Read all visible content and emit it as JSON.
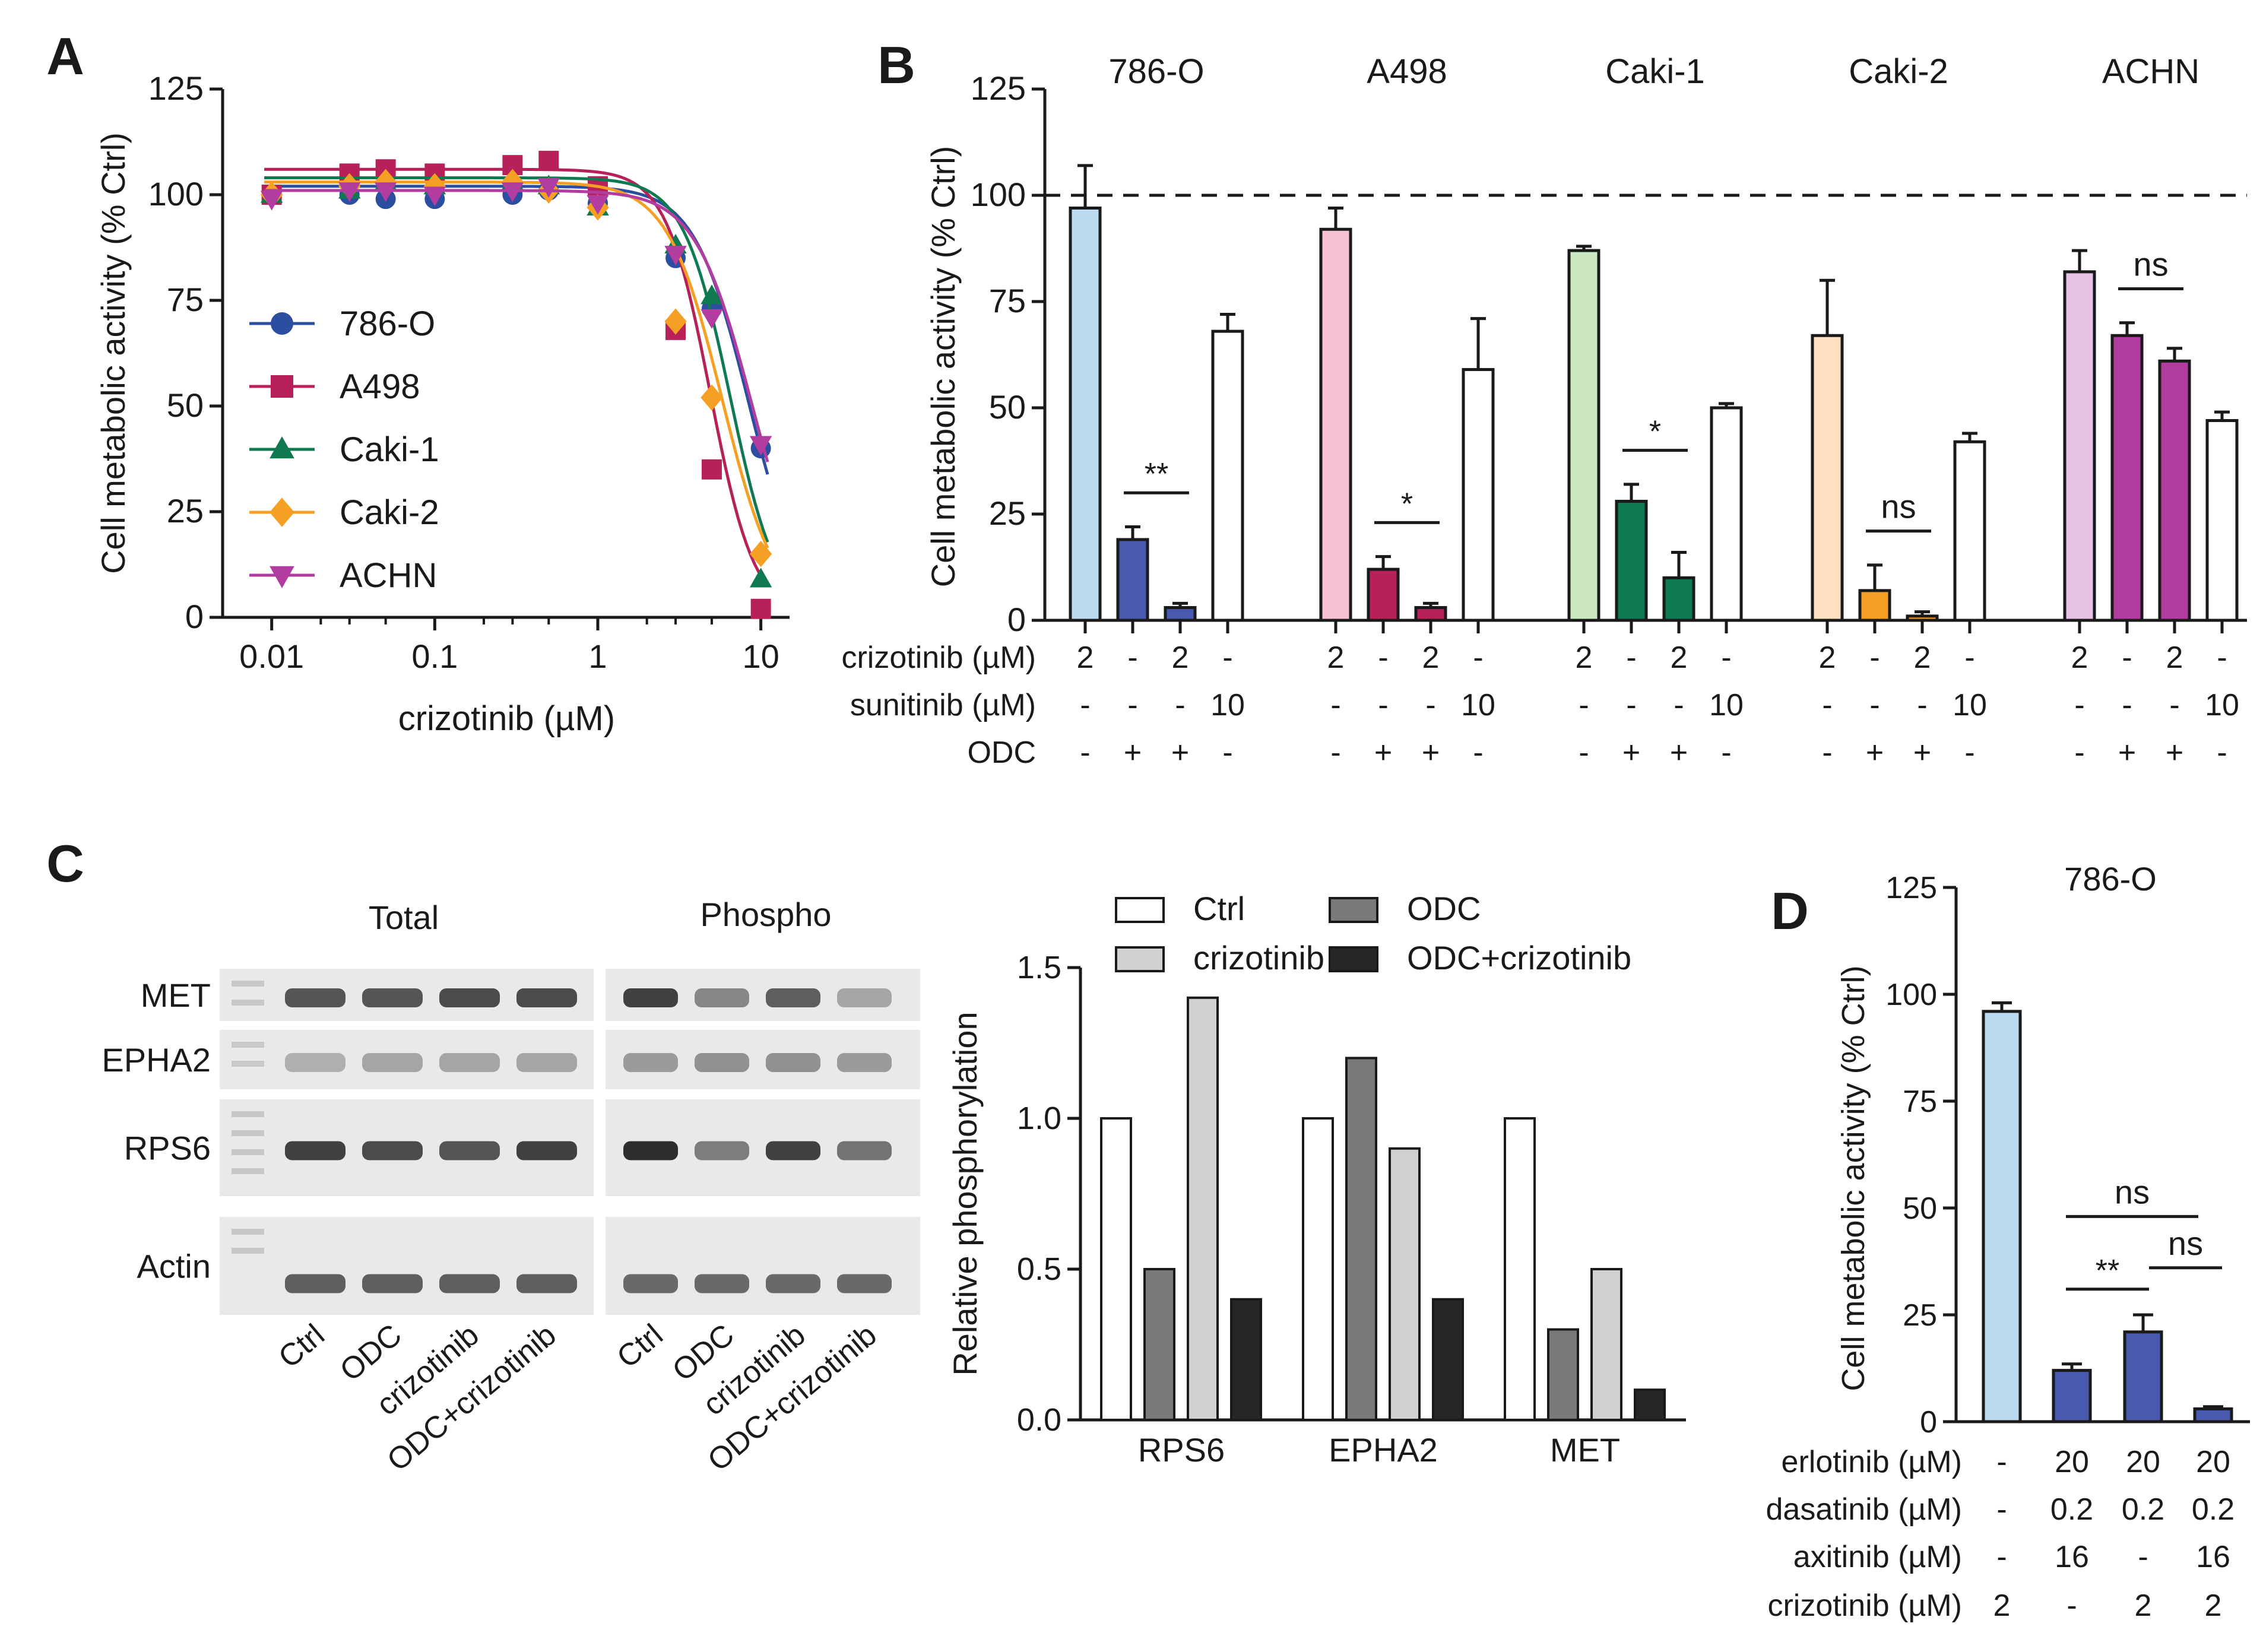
{
  "colors": {
    "786-O": "#2b4ea0",
    "A498": "#b8205a",
    "Caki-1": "#0f7a50",
    "Caki-2": "#f5a024",
    "ACHN": "#b23ca0",
    "786-O-light": "#bcdaf0",
    "A498-light": "#f7c2d3",
    "Caki-1-light": "#cce8c2",
    "Caki-2-light": "#fde0c0",
    "ACHN-light": "#e8c2e2",
    "bar-blue": "#4a59b0",
    "axis": "#1a1a1a"
  },
  "chart_data": [
    {
      "panel": "A",
      "type": "line",
      "xscale": "log",
      "xlabel": "crizotinib (µM)",
      "ylabel": "Cell metabolic activity (% Ctrl)",
      "ylim": [
        0,
        125
      ],
      "yticks": [
        "0",
        "25",
        "50",
        "75",
        "100",
        "125"
      ],
      "xticks": [
        "0.01",
        "0.1",
        "1",
        "10"
      ],
      "x": [
        0.01,
        0.03,
        0.05,
        0.1,
        0.3,
        0.5,
        1,
        3,
        5,
        10
      ],
      "series": [
        {
          "name": "786-O",
          "marker": "circle",
          "values": [
            100,
            100,
            99,
            99,
            100,
            101,
            98,
            85,
            73,
            40
          ],
          "curve": {
            "top": 102,
            "ic50": 8.4,
            "hill": 2.6
          }
        },
        {
          "name": "A498",
          "marker": "square",
          "values": [
            100,
            105,
            106,
            105,
            107,
            108,
            102,
            68,
            35,
            2
          ],
          "curve": {
            "top": 106,
            "ic50": 4.9,
            "hill": 3.2
          }
        },
        {
          "name": "Caki-1",
          "marker": "triangle-up",
          "values": [
            100,
            101,
            103,
            102,
            103,
            102,
            97,
            88,
            76,
            9
          ],
          "curve": {
            "top": 104,
            "ic50": 6.5,
            "hill": 3.0
          }
        },
        {
          "name": "Caki-2",
          "marker": "diamond",
          "values": [
            100,
            102,
            103,
            102,
            103,
            101,
            97,
            70,
            52,
            15
          ],
          "curve": {
            "top": 103,
            "ic50": 5.8,
            "hill": 2.6
          }
        },
        {
          "name": "ACHN",
          "marker": "triangle-down",
          "values": [
            99,
            101,
            101,
            100,
            101,
            102,
            98,
            86,
            71,
            41
          ],
          "curve": {
            "top": 101,
            "ic50": 8.8,
            "hill": 2.5
          }
        }
      ]
    },
    {
      "panel": "B",
      "type": "bar",
      "ylabel": "Cell metabolic activity (% Ctrl)",
      "ylim": [
        0,
        125
      ],
      "yticks": [
        "0",
        "25",
        "50",
        "75",
        "100",
        "125"
      ],
      "reference_line": 100,
      "groups": [
        {
          "name": "786-O",
          "values": [
            97,
            19,
            3,
            68
          ],
          "errors": [
            10,
            3,
            1,
            4
          ],
          "fills": [
            "786-O-light",
            "bar-blue",
            "bar-blue",
            "#ffffff"
          ],
          "sig": "**"
        },
        {
          "name": "A498",
          "values": [
            92,
            12,
            3,
            59
          ],
          "errors": [
            5,
            3,
            1,
            12
          ],
          "fills": [
            "A498-light",
            "A498",
            "A498",
            "#ffffff"
          ],
          "sig": "*"
        },
        {
          "name": "Caki-1",
          "values": [
            87,
            28,
            10,
            50
          ],
          "errors": [
            1,
            4,
            6,
            1
          ],
          "fills": [
            "Caki-1-light",
            "Caki-1",
            "Caki-1",
            "#ffffff"
          ],
          "sig": "*"
        },
        {
          "name": "Caki-2",
          "values": [
            67,
            7,
            1,
            42
          ],
          "errors": [
            13,
            6,
            1,
            2
          ],
          "fills": [
            "Caki-2-light",
            "Caki-2",
            "Caki-2",
            "#ffffff"
          ],
          "sig": "ns"
        },
        {
          "name": "ACHN",
          "values": [
            82,
            67,
            61,
            47
          ],
          "errors": [
            5,
            3,
            3,
            2
          ],
          "fills": [
            "ACHN-light",
            "ACHN",
            "ACHN",
            "#ffffff"
          ],
          "sig": "ns"
        }
      ],
      "condition_rows": [
        {
          "label": "crizotinib (µM)",
          "values": [
            "2",
            "-",
            "2",
            "-"
          ]
        },
        {
          "label": "sunitinib (µM)",
          "values": [
            "-",
            "-",
            "-",
            "10"
          ]
        },
        {
          "label": "ODC",
          "values": [
            "-",
            "+",
            "+",
            "-"
          ]
        }
      ]
    },
    {
      "panel": "C",
      "type": "bar",
      "ylabel": "Relative phosphorylation",
      "ylim": [
        0,
        1.5
      ],
      "yticks": [
        "0.0",
        "0.5",
        "1.0",
        "1.5"
      ],
      "categories": [
        "RPS6",
        "EPHA2",
        "MET"
      ],
      "series": [
        {
          "name": "Ctrl",
          "color": "#ffffff",
          "values": [
            1.0,
            1.0,
            1.0
          ]
        },
        {
          "name": "ODC",
          "color": "#7a7a7a",
          "values": [
            0.5,
            1.2,
            0.3
          ]
        },
        {
          "name": "crizotinib",
          "color": "#d0d0d0",
          "values": [
            1.4,
            0.9,
            0.5
          ]
        },
        {
          "name": "ODC+crizotinib",
          "color": "#262626",
          "values": [
            0.4,
            0.4,
            0.1
          ]
        }
      ]
    },
    {
      "panel": "D",
      "type": "bar",
      "title": "786-O",
      "ylabel": "Cell metabolic activity (% Ctrl)",
      "ylim": [
        0,
        125
      ],
      "yticks": [
        "0",
        "25",
        "50",
        "75",
        "100",
        "125"
      ],
      "values": [
        96,
        12,
        21,
        3
      ],
      "errors": [
        2,
        1.5,
        4,
        0.5
      ],
      "fills": [
        "786-O-light",
        "bar-blue",
        "bar-blue",
        "bar-blue"
      ],
      "significance": [
        {
          "from": 1,
          "to": 2,
          "label": "**"
        },
        {
          "from": 2,
          "to": 3,
          "label": "ns"
        },
        {
          "from": 1,
          "to": 3,
          "label": "ns"
        }
      ],
      "condition_rows": [
        {
          "label": "erlotinib (µM)",
          "values": [
            "-",
            "20",
            "20",
            "20"
          ]
        },
        {
          "label": "dasatinib (µM)",
          "values": [
            "-",
            "0.2",
            "0.2",
            "0.2"
          ]
        },
        {
          "label": "axitinib (µM)",
          "values": [
            "-",
            "16",
            "-",
            "16"
          ]
        },
        {
          "label": "crizotinib (µM)",
          "values": [
            "2",
            "-",
            "2",
            "2"
          ]
        }
      ]
    }
  ],
  "blots": {
    "total_label": "Total",
    "phospho_label": "Phospho",
    "rows": [
      "MET",
      "EPHA2",
      "RPS6",
      "Actin"
    ],
    "lanes": [
      "Ctrl",
      "ODC",
      "crizotinib",
      "ODC+crizotinib"
    ],
    "band_intensity": {
      "total": [
        [
          0.75,
          0.75,
          0.8,
          0.8
        ],
        [
          0.3,
          0.35,
          0.35,
          0.35
        ],
        [
          0.85,
          0.8,
          0.75,
          0.85
        ],
        [
          0.7,
          0.7,
          0.7,
          0.7
        ]
      ],
      "phospho": [
        [
          0.85,
          0.5,
          0.7,
          0.35
        ],
        [
          0.4,
          0.45,
          0.45,
          0.4
        ],
        [
          0.95,
          0.55,
          0.85,
          0.6
        ],
        [
          0.65,
          0.65,
          0.65,
          0.65
        ]
      ]
    }
  },
  "labels": {
    "A": "A",
    "B": "B",
    "C": "C",
    "D": "D"
  }
}
